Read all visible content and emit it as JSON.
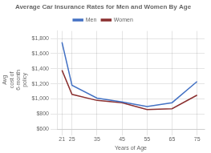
{
  "chart_data": {
    "type": "line",
    "title": "Average Car Insurance Rates for Men and Women By Age",
    "x_label": "Years of Age",
    "y_label": "Avg\ncost of\n6-month\npolicy",
    "x": [
      21,
      25,
      35,
      45,
      55,
      65,
      75
    ],
    "series": [
      {
        "name": "Men",
        "color": "#4472C4",
        "values": [
          1750,
          1180,
          1010,
          960,
          900,
          950,
          1230
        ]
      },
      {
        "name": "Women",
        "color": "#8B3030",
        "values": [
          1380,
          1060,
          980,
          950,
          860,
          870,
          1050
        ]
      }
    ],
    "xlim": [
      19,
      78
    ],
    "xticks": [
      21,
      25,
      35,
      45,
      55,
      65,
      75
    ],
    "ylim": [
      600,
      1900
    ],
    "yticks": [
      {
        "value": 600,
        "label": "$600"
      },
      {
        "value": 800,
        "label": "$800"
      },
      {
        "value": 1000,
        "label": "$1,000"
      },
      {
        "value": 1200,
        "label": "$1,200"
      },
      {
        "value": 1400,
        "label": "$1,400"
      },
      {
        "value": 1600,
        "label": "$1,600"
      },
      {
        "value": 1800,
        "label": "$1,800"
      }
    ],
    "grid": true,
    "legend": "top"
  }
}
